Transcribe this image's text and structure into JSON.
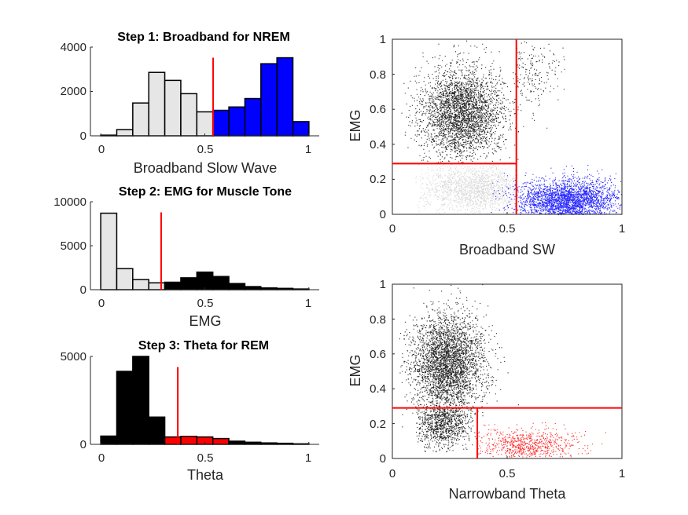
{
  "chart_data": [
    {
      "id": "hist1",
      "type": "bar",
      "title": "Step 1: Broadband for NREM",
      "xlabel": "Broadband Slow Wave",
      "ylabel": "",
      "xlim": [
        -0.05,
        1.05
      ],
      "ylim": [
        0,
        4000
      ],
      "xticks": [
        "0",
        "0.5",
        "1"
      ],
      "yticks": [
        "0",
        "2000",
        "4000"
      ],
      "bin_width": 0.0769,
      "bin_centers": [
        0.038,
        0.115,
        0.192,
        0.269,
        0.346,
        0.423,
        0.5,
        0.577,
        0.654,
        0.731,
        0.808,
        0.885,
        0.962
      ],
      "values": [
        30,
        280,
        1480,
        2860,
        2500,
        1900,
        1080,
        1150,
        1300,
        1680,
        3250,
        3520,
        640
      ],
      "colors": [
        "#e6e6e6",
        "#e6e6e6",
        "#e6e6e6",
        "#e6e6e6",
        "#e6e6e6",
        "#e6e6e6",
        "#e6e6e6",
        "#0000ff",
        "#0000ff",
        "#0000ff",
        "#0000ff",
        "#0000ff",
        "#0000ff"
      ],
      "threshold": 0.54,
      "threshold_color": "#ff0000"
    },
    {
      "id": "hist2",
      "type": "bar",
      "title": "Step 2: EMG for Muscle Tone",
      "xlabel": "EMG",
      "ylabel": "",
      "xlim": [
        -0.05,
        1.05
      ],
      "ylim": [
        0,
        10000
      ],
      "xticks": [
        "0",
        "0.5",
        "1"
      ],
      "yticks": [
        "0",
        "5000",
        "10000"
      ],
      "bin_width": 0.0769,
      "bin_centers": [
        0.038,
        0.115,
        0.192,
        0.269,
        0.346,
        0.423,
        0.5,
        0.577,
        0.654,
        0.731,
        0.808,
        0.885,
        0.962
      ],
      "values": [
        8700,
        2400,
        1150,
        780,
        850,
        1350,
        2000,
        1500,
        700,
        350,
        200,
        150,
        80
      ],
      "colors": [
        "#e6e6e6",
        "#e6e6e6",
        "#e6e6e6",
        "#e6e6e6",
        "#000000",
        "#000000",
        "#000000",
        "#000000",
        "#000000",
        "#000000",
        "#000000",
        "#000000",
        "#000000"
      ],
      "threshold": 0.29,
      "threshold_color": "#ff0000"
    },
    {
      "id": "hist3",
      "type": "bar",
      "title": "Step 3: Theta for REM",
      "xlabel": "Theta",
      "ylabel": "",
      "xlim": [
        -0.05,
        1.05
      ],
      "ylim": [
        0,
        5000
      ],
      "xticks": [
        "0",
        "0.5",
        "1"
      ],
      "yticks": [
        "0",
        "5000"
      ],
      "bin_width": 0.0769,
      "bin_centers": [
        0.038,
        0.115,
        0.192,
        0.269,
        0.346,
        0.423,
        0.5,
        0.577,
        0.654,
        0.731,
        0.808,
        0.885,
        0.962
      ],
      "values": [
        470,
        4150,
        5000,
        1550,
        420,
        450,
        420,
        330,
        180,
        120,
        80,
        60,
        30
      ],
      "colors": [
        "#000000",
        "#000000",
        "#000000",
        "#000000",
        "#ff0000",
        "#ff0000",
        "#ff0000",
        "#ff0000",
        "#000000",
        "#000000",
        "#000000",
        "#000000",
        "#000000"
      ],
      "threshold": 0.37,
      "threshold_color": "#ff0000"
    },
    {
      "id": "scatter1",
      "type": "scatter",
      "xlabel": "Broadband SW",
      "ylabel": "EMG",
      "xlim": [
        0,
        1
      ],
      "ylim": [
        0,
        1
      ],
      "xticks": [
        "0",
        "0.5",
        "1"
      ],
      "yticks": [
        "0",
        "0.2",
        "0.4",
        "0.6",
        "0.8",
        "1"
      ],
      "groups": [
        {
          "color": "#000000",
          "count": 3200,
          "center": [
            0.3,
            0.58
          ],
          "spread": [
            0.09,
            0.13
          ],
          "xrange": [
            0.02,
            0.66
          ],
          "yrange": [
            0.29,
            1.0
          ]
        },
        {
          "color": "#000000",
          "count": 180,
          "center": [
            0.6,
            0.8
          ],
          "spread": [
            0.08,
            0.1
          ],
          "xrange": [
            0.54,
            0.75
          ],
          "yrange": [
            0.45,
            1.0
          ]
        },
        {
          "color": "#d3d3d3",
          "count": 1600,
          "center": [
            0.36,
            0.15
          ],
          "spread": [
            0.12,
            0.07
          ],
          "xrange": [
            0.1,
            0.54
          ],
          "yrange": [
            0.0,
            0.29
          ]
        },
        {
          "color": "#0000ff",
          "count": 2600,
          "center": [
            0.76,
            0.08
          ],
          "spread": [
            0.11,
            0.06
          ],
          "xrange": [
            0.42,
            1.0
          ],
          "yrange": [
            0.0,
            0.42
          ]
        }
      ],
      "hline": {
        "y": 0.29,
        "x_from": 0,
        "x_to": 0.54,
        "color": "#ff0000"
      },
      "vline": {
        "x": 0.54,
        "y_from": 0,
        "y_to": 1,
        "color": "#ff0000"
      }
    },
    {
      "id": "scatter2",
      "type": "scatter",
      "xlabel": "Narrowband Theta",
      "ylabel": "EMG",
      "xlim": [
        0,
        1
      ],
      "ylim": [
        0,
        1
      ],
      "xticks": [
        "0",
        "0.5",
        "1"
      ],
      "yticks": [
        "0",
        "0.2",
        "0.4",
        "0.6",
        "0.8",
        "1"
      ],
      "groups": [
        {
          "color": "#000000",
          "count": 3400,
          "center": [
            0.24,
            0.55
          ],
          "spread": [
            0.08,
            0.14
          ],
          "xrange": [
            0.03,
            0.6
          ],
          "yrange": [
            0.08,
            1.0
          ]
        },
        {
          "color": "#000000",
          "count": 900,
          "center": [
            0.22,
            0.2
          ],
          "spread": [
            0.06,
            0.07
          ],
          "xrange": [
            0.1,
            0.37
          ],
          "yrange": [
            0.04,
            0.29
          ]
        },
        {
          "color": "#ff0000",
          "count": 700,
          "center": [
            0.58,
            0.07
          ],
          "spread": [
            0.12,
            0.05
          ],
          "xrange": [
            0.37,
            1.0
          ],
          "yrange": [
            0.01,
            0.29
          ]
        }
      ],
      "hline": {
        "y": 0.29,
        "x_from": 0,
        "x_to": 1,
        "color": "#ff0000"
      },
      "vline": {
        "x": 0.37,
        "y_from": 0,
        "y_to": 0.29,
        "color": "#ff0000"
      }
    }
  ]
}
